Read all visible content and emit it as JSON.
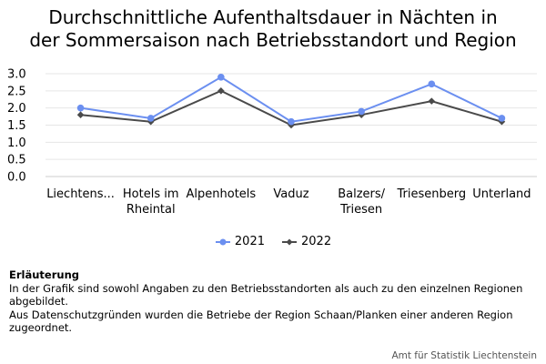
{
  "title_lines": [
    "Durchschnittliche Aufenthaltsdauer in Nächten in",
    "der Sommersaison nach Betriebsstandort und Region"
  ],
  "notes": {
    "heading": "Erläuterung",
    "lines": [
      "In der Grafik sind sowohl Angaben zu den Betriebsstandorten als auch zu den einzelnen Regionen abgebildet.",
      "Aus Datenschutzgründen wurden die Betriebe der Region Schaan/Planken einer anderen Region zugeordnet."
    ]
  },
  "source": "Amt für Statistik Liechtenstein",
  "chart_data": {
    "type": "line",
    "title": "Durchschnittliche Aufenthaltsdauer in Nächten in der Sommersaison nach Betriebsstandort und Region",
    "categories": [
      "Liechtens...",
      "Hotels im Rheintal",
      "Alpenhotels",
      "Vaduz",
      "Balzers/ Triesen",
      "Triesenberg",
      "Unterland"
    ],
    "category_label_lines": [
      [
        "Liechtens..."
      ],
      [
        "Hotels im",
        "Rheintal"
      ],
      [
        "Alpenhotels"
      ],
      [
        "Vaduz"
      ],
      [
        "Balzers/",
        "Triesen"
      ],
      [
        "Triesenberg"
      ],
      [
        "Unterland"
      ]
    ],
    "ylim": [
      0,
      3.0
    ],
    "yticks": [
      "0.0",
      "0.5",
      "1.0",
      "1.5",
      "2.0",
      "2.5",
      "3.0"
    ],
    "grid": true,
    "legend_position": "bottom",
    "series": [
      {
        "name": "2021",
        "color": "#6b8ff0",
        "marker": "circle",
        "values": [
          2.0,
          1.7,
          2.9,
          1.6,
          1.9,
          2.7,
          1.7
        ]
      },
      {
        "name": "2022",
        "color": "#4a4a4a",
        "marker": "diamond",
        "values": [
          1.8,
          1.6,
          2.5,
          1.5,
          1.8,
          2.2,
          1.6
        ]
      }
    ]
  }
}
